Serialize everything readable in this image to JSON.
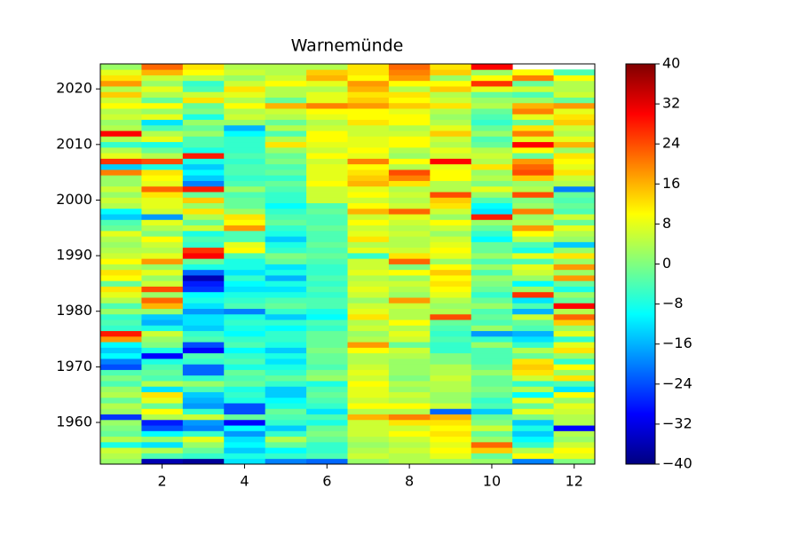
{
  "chart_data": {
    "type": "heatmap",
    "title": "Warnemünde",
    "colormap": "jet",
    "x": [
      1,
      2,
      3,
      4,
      5,
      6,
      7,
      8,
      9,
      10,
      11,
      12
    ],
    "y": [
      1953,
      1954,
      1955,
      1956,
      1957,
      1958,
      1959,
      1960,
      1961,
      1962,
      1963,
      1964,
      1965,
      1966,
      1967,
      1968,
      1969,
      1970,
      1971,
      1972,
      1973,
      1974,
      1975,
      1976,
      1977,
      1978,
      1979,
      1980,
      1981,
      1982,
      1983,
      1984,
      1985,
      1986,
      1987,
      1988,
      1989,
      1990,
      1991,
      1992,
      1993,
      1994,
      1995,
      1996,
      1997,
      1998,
      1999,
      2000,
      2001,
      2002,
      2003,
      2004,
      2005,
      2006,
      2007,
      2008,
      2009,
      2010,
      2011,
      2012,
      2013,
      2014,
      2015,
      2016,
      2017,
      2018,
      2019,
      2020,
      2021,
      2022,
      2023,
      2024
    ],
    "values": [
      [
        2,
        -36,
        -38,
        -12,
        -20,
        -22,
        2,
        4,
        3,
        2,
        -20,
        0
      ],
      [
        4,
        -4,
        -6,
        -8,
        -6,
        -4,
        6,
        4,
        8,
        -2,
        10,
        8
      ],
      [
        6,
        4,
        -2,
        -14,
        -10,
        -6,
        4,
        6,
        10,
        14,
        4,
        10
      ],
      [
        -8,
        -12,
        2,
        -10,
        -2,
        -6,
        2,
        4,
        8,
        22,
        -6,
        6
      ],
      [
        4,
        2,
        8,
        -12,
        4,
        -2,
        4,
        6,
        10,
        2,
        -10,
        2
      ],
      [
        -2,
        -10,
        -6,
        -18,
        -6,
        0,
        6,
        10,
        12,
        -2,
        -14,
        4
      ],
      [
        0,
        -24,
        -20,
        -10,
        -14,
        -2,
        6,
        6,
        10,
        6,
        -8,
        -30
      ],
      [
        2,
        -28,
        -18,
        -30,
        -6,
        -8,
        6,
        12,
        12,
        0,
        -14,
        4
      ],
      [
        -26,
        4,
        6,
        -2,
        -4,
        -4,
        16,
        20,
        16,
        -2,
        0,
        4
      ],
      [
        2,
        10,
        -6,
        -24,
        -2,
        -12,
        4,
        4,
        -22,
        -14,
        8,
        6
      ],
      [
        4,
        -2,
        -18,
        -24,
        -8,
        -6,
        10,
        10,
        6,
        -4,
        -2,
        8
      ],
      [
        -2,
        8,
        -16,
        -8,
        -10,
        -4,
        6,
        4,
        2,
        -6,
        8,
        2
      ],
      [
        4,
        12,
        -14,
        -6,
        -14,
        -2,
        8,
        6,
        2,
        -2,
        -10,
        10
      ],
      [
        2,
        -12,
        -4,
        -8,
        -14,
        -4,
        8,
        2,
        4,
        0,
        4,
        -12
      ],
      [
        -4,
        4,
        2,
        -2,
        -6,
        -8,
        10,
        4,
        4,
        -2,
        -6,
        -4
      ],
      [
        0,
        -4,
        -6,
        -4,
        -2,
        2,
        6,
        0,
        6,
        -2,
        6,
        12
      ],
      [
        -4,
        -2,
        -22,
        -2,
        -6,
        0,
        8,
        2,
        4,
        2,
        12,
        2
      ],
      [
        -24,
        -4,
        -22,
        -8,
        -8,
        -4,
        6,
        2,
        4,
        -2,
        14,
        10
      ],
      [
        -20,
        -8,
        -6,
        -4,
        -12,
        -2,
        4,
        2,
        0,
        -4,
        12,
        -6
      ],
      [
        -10,
        -30,
        -4,
        -6,
        -8,
        -2,
        4,
        4,
        0,
        -4,
        -2,
        2
      ],
      [
        -14,
        -8,
        -30,
        -10,
        -14,
        0,
        10,
        6,
        -6,
        -4,
        4,
        12
      ],
      [
        -10,
        0,
        -24,
        -4,
        -8,
        -2,
        18,
        -2,
        -6,
        2,
        -6,
        8
      ],
      [
        18,
        2,
        -4,
        -6,
        -6,
        -2,
        4,
        6,
        -4,
        -6,
        -12,
        -6
      ],
      [
        28,
        6,
        -6,
        -10,
        -6,
        -2,
        2,
        8,
        -6,
        -18,
        -16,
        8
      ],
      [
        -6,
        -8,
        -14,
        -8,
        -10,
        -6,
        6,
        4,
        -4,
        2,
        -4,
        2
      ],
      [
        -4,
        -16,
        -12,
        -6,
        -6,
        -4,
        4,
        10,
        -2,
        -4,
        -2,
        14
      ],
      [
        -6,
        -14,
        -12,
        -8,
        -14,
        -10,
        12,
        4,
        24,
        -2,
        6,
        22
      ],
      [
        2,
        2,
        -18,
        -20,
        -6,
        -8,
        8,
        4,
        4,
        -4,
        -16,
        4
      ],
      [
        -4,
        16,
        -12,
        -4,
        -2,
        -4,
        6,
        6,
        2,
        2,
        -4,
        30
      ],
      [
        4,
        22,
        -8,
        -6,
        -4,
        -4,
        2,
        18,
        4,
        -2,
        -12,
        -2
      ],
      [
        8,
        2,
        -10,
        -8,
        -8,
        -6,
        6,
        2,
        8,
        -6,
        26,
        2
      ],
      [
        12,
        24,
        -26,
        -12,
        -12,
        -4,
        8,
        4,
        10,
        -2,
        2,
        -8
      ],
      [
        -2,
        6,
        -28,
        -10,
        -8,
        -6,
        6,
        6,
        12,
        0,
        -10,
        -2
      ],
      [
        10,
        2,
        -36,
        -6,
        -16,
        -4,
        4,
        2,
        10,
        2,
        2,
        18
      ],
      [
        12,
        8,
        -22,
        -12,
        -8,
        -6,
        8,
        10,
        14,
        -4,
        6,
        2
      ],
      [
        4,
        2,
        -8,
        -8,
        -12,
        -6,
        6,
        0,
        10,
        2,
        8,
        18
      ],
      [
        10,
        18,
        -2,
        -8,
        -2,
        -4,
        6,
        22,
        2,
        -4,
        -4,
        2
      ],
      [
        6,
        8,
        30,
        -4,
        0,
        -2,
        -6,
        12,
        8,
        2,
        8,
        12
      ],
      [
        4,
        4,
        26,
        10,
        -6,
        -4,
        8,
        6,
        10,
        -2,
        -8,
        2
      ],
      [
        2,
        6,
        -6,
        8,
        -8,
        -2,
        4,
        4,
        8,
        -2,
        -4,
        -14
      ],
      [
        4,
        10,
        -4,
        -4,
        -14,
        -4,
        12,
        4,
        6,
        -10,
        4,
        2
      ],
      [
        8,
        0,
        -8,
        -4,
        -8,
        -4,
        8,
        6,
        2,
        -6,
        10,
        4
      ],
      [
        -2,
        4,
        6,
        18,
        -6,
        -2,
        6,
        4,
        6,
        -2,
        18,
        8
      ],
      [
        -4,
        8,
        -2,
        10,
        -2,
        -4,
        10,
        6,
        10,
        2,
        4,
        -2
      ],
      [
        -14,
        -18,
        4,
        12,
        -4,
        -4,
        6,
        8,
        2,
        28,
        2,
        6
      ],
      [
        -10,
        6,
        12,
        2,
        -6,
        -2,
        16,
        22,
        6,
        -12,
        20,
        -4
      ],
      [
        4,
        8,
        2,
        -2,
        -10,
        -4,
        10,
        6,
        12,
        -10,
        2,
        -2
      ],
      [
        6,
        8,
        14,
        -2,
        -6,
        6,
        6,
        4,
        14,
        -4,
        0,
        -4
      ],
      [
        2,
        12,
        -2,
        -4,
        -6,
        6,
        10,
        6,
        24,
        2,
        24,
        -2
      ],
      [
        6,
        22,
        28,
        2,
        -4,
        6,
        8,
        4,
        4,
        8,
        4,
        -20
      ],
      [
        2,
        8,
        -20,
        -4,
        -2,
        10,
        16,
        12,
        4,
        0,
        2,
        4
      ],
      [
        2,
        10,
        -14,
        -6,
        -6,
        8,
        14,
        20,
        10,
        4,
        14,
        6
      ],
      [
        20,
        12,
        -10,
        -4,
        -2,
        8,
        12,
        24,
        10,
        2,
        24,
        12
      ],
      [
        -14,
        -8,
        -14,
        -4,
        -4,
        8,
        10,
        4,
        8,
        12,
        22,
        8
      ],
      [
        26,
        24,
        -8,
        -6,
        0,
        6,
        20,
        10,
        30,
        4,
        18,
        10
      ],
      [
        8,
        4,
        28,
        -4,
        -2,
        10,
        8,
        2,
        6,
        6,
        -2,
        12
      ],
      [
        4,
        -2,
        -8,
        -6,
        2,
        6,
        10,
        4,
        8,
        4,
        10,
        2
      ],
      [
        -6,
        -8,
        -4,
        -6,
        12,
        8,
        8,
        10,
        4,
        -2,
        30,
        16
      ],
      [
        4,
        8,
        -4,
        -6,
        4,
        10,
        8,
        10,
        6,
        -4,
        8,
        8
      ],
      [
        30,
        4,
        2,
        -10,
        -4,
        10,
        6,
        6,
        14,
        2,
        20,
        4
      ],
      [
        4,
        -4,
        -2,
        -16,
        4,
        6,
        6,
        4,
        8,
        -2,
        12,
        6
      ],
      [
        2,
        -12,
        2,
        2,
        -2,
        4,
        12,
        10,
        4,
        -6,
        -2,
        14
      ],
      [
        6,
        8,
        -8,
        6,
        4,
        8,
        10,
        10,
        2,
        -4,
        8,
        12
      ],
      [
        4,
        2,
        0,
        4,
        6,
        10,
        10,
        8,
        4,
        -2,
        20,
        8
      ],
      [
        10,
        10,
        -2,
        10,
        16,
        20,
        18,
        14,
        12,
        4,
        16,
        18
      ],
      [
        6,
        -2,
        12,
        4,
        -2,
        8,
        14,
        10,
        6,
        2,
        2,
        -2
      ],
      [
        14,
        4,
        6,
        8,
        4,
        8,
        12,
        12,
        4,
        -2,
        -4,
        6
      ],
      [
        4,
        8,
        -4,
        12,
        4,
        4,
        16,
        4,
        14,
        8,
        6,
        4
      ],
      [
        18,
        2,
        -6,
        6,
        10,
        8,
        18,
        10,
        10,
        26,
        -2,
        4
      ],
      [
        12,
        6,
        4,
        2,
        6,
        16,
        10,
        18,
        2,
        10,
        20,
        10
      ],
      [
        8,
        16,
        10,
        6,
        4,
        14,
        12,
        20,
        14,
        2,
        10,
        -4
      ],
      [
        2,
        22,
        12,
        4,
        4,
        4,
        12,
        22,
        12,
        30,
        null,
        null
      ]
    ],
    "xlim": [
      0.5,
      12.5
    ],
    "xticks": [
      2,
      4,
      6,
      8,
      10,
      12
    ],
    "ylim": [
      1952.5,
      2024.5
    ],
    "yticks": [
      1960,
      1970,
      1980,
      1990,
      2000,
      2010,
      2020
    ],
    "clim": [
      -40,
      40
    ],
    "cticks": [
      {
        "value": -40,
        "label": "−40"
      },
      {
        "value": -32,
        "label": "−32"
      },
      {
        "value": -24,
        "label": "−24"
      },
      {
        "value": -16,
        "label": "−16"
      },
      {
        "value": -8,
        "label": "−8"
      },
      0,
      8,
      16,
      24,
      32,
      40
    ]
  }
}
